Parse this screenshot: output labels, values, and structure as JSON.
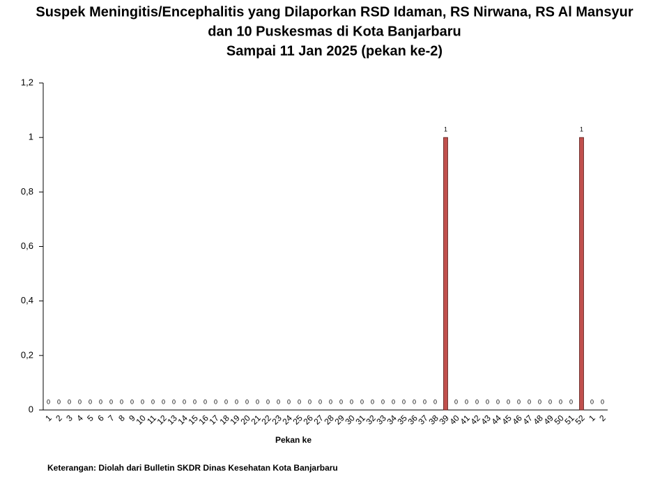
{
  "chart_data": {
    "type": "bar",
    "title": [
      "Suspek Meningitis/Encephalitis  yang Dilaporkan RSD Idaman, RS Nirwana, RS Al Mansyur",
      "dan 10 Puskesmas di Kota Banjarbaru",
      "Sampai 11 Jan 2025 (pekan ke-2)"
    ],
    "x_label": "Pekan ke",
    "note": "Keterangan: Diolah dari Bulletin SKDR Dinas Kesehatan Kota Banjarbaru",
    "categories": [
      "1",
      "2",
      "3",
      "4",
      "5",
      "6",
      "7",
      "8",
      "9",
      "10",
      "11",
      "12",
      "13",
      "14",
      "15",
      "16",
      "17",
      "18",
      "19",
      "20",
      "21",
      "22",
      "23",
      "24",
      "25",
      "26",
      "27",
      "28",
      "29",
      "30",
      "31",
      "32",
      "33",
      "34",
      "35",
      "36",
      "37",
      "38",
      "39",
      "40",
      "41",
      "42",
      "43",
      "44",
      "45",
      "46",
      "47",
      "48",
      "49",
      "50",
      "51",
      "52",
      "1",
      "2"
    ],
    "values": [
      0,
      0,
      0,
      0,
      0,
      0,
      0,
      0,
      0,
      0,
      0,
      0,
      0,
      0,
      0,
      0,
      0,
      0,
      0,
      0,
      0,
      0,
      0,
      0,
      0,
      0,
      0,
      0,
      0,
      0,
      0,
      0,
      0,
      0,
      0,
      0,
      0,
      0,
      1,
      0,
      0,
      0,
      0,
      0,
      0,
      0,
      0,
      0,
      0,
      0,
      0,
      1,
      0,
      0
    ],
    "color": "#c0504d",
    "ylim": [
      0,
      1.2
    ],
    "yticks": [
      0,
      {
        "value": 0.2,
        "label": "0,2"
      },
      {
        "value": 0.4,
        "label": "0,4"
      },
      {
        "value": 0.6,
        "label": "0,6"
      },
      {
        "value": 0.8,
        "label": "0,8"
      },
      1,
      {
        "value": 1.2,
        "label": "1,2"
      }
    ],
    "grid": false
  }
}
